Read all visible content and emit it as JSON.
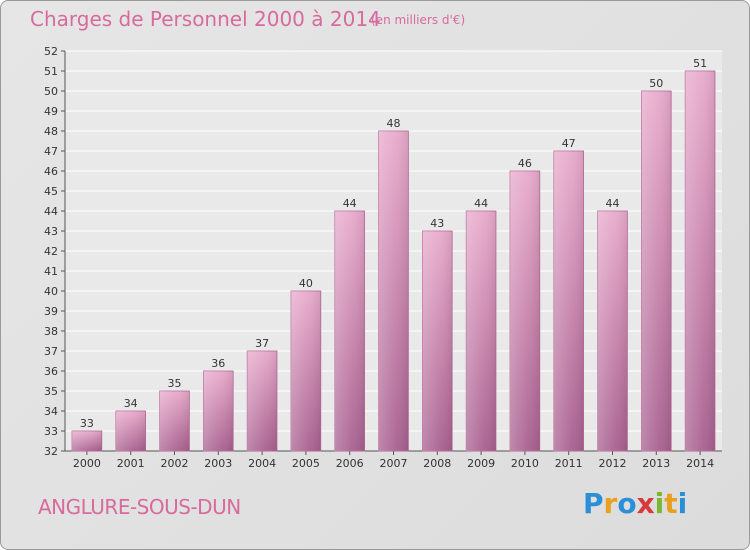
{
  "chart_data": {
    "type": "bar",
    "title": "Charges de Personnel 2000 à 2014",
    "subtitle": "(en milliers d'€)",
    "categories": [
      "2000",
      "2001",
      "2002",
      "2003",
      "2004",
      "2005",
      "2006",
      "2007",
      "2008",
      "2009",
      "2010",
      "2011",
      "2012",
      "2013",
      "2014"
    ],
    "values": [
      33,
      34,
      35,
      36,
      37,
      40,
      44,
      48,
      43,
      44,
      46,
      47,
      44,
      50,
      51
    ],
    "ylim": [
      32,
      52
    ],
    "yticks": [
      32,
      33,
      34,
      35,
      36,
      37,
      38,
      39,
      40,
      41,
      42,
      43,
      44,
      45,
      46,
      47,
      48,
      49,
      50,
      51,
      52
    ],
    "xlabel": "",
    "ylabel": "",
    "grid": true
  },
  "footer": {
    "commune": "ANGLURE-SOUS-DUN",
    "logo_letters": [
      "P",
      "r",
      "o",
      "x",
      "i",
      "t",
      "i"
    ],
    "logo_colors": [
      "#2a8fd6",
      "#e8a020",
      "#2a8fd6",
      "#d63a3a",
      "#7ab82e",
      "#e8a020",
      "#2a8fd6"
    ]
  },
  "colors": {
    "accent": "#d86a9e",
    "bar_top": "#e8aacb",
    "bar_bottom": "#a8608f",
    "bar_edge": "#b96c99"
  }
}
